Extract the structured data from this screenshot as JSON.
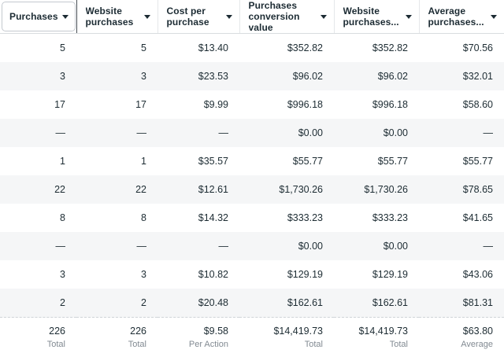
{
  "table": {
    "columns": [
      {
        "label": "Purchases",
        "state": "selected"
      },
      {
        "label": "Website purchases",
        "state": "default"
      },
      {
        "label": "Cost per purchase",
        "state": "default"
      },
      {
        "label": "Purchases conversion value",
        "state": "default"
      },
      {
        "label": "Website purchases...",
        "state": "default"
      },
      {
        "label": "Average purchases...",
        "state": "default"
      }
    ],
    "rows": [
      [
        "5",
        "5",
        "$13.40",
        "$352.82",
        "$352.82",
        "$70.56"
      ],
      [
        "3",
        "3",
        "$23.53",
        "$96.02",
        "$96.02",
        "$32.01"
      ],
      [
        "17",
        "17",
        "$9.99",
        "$996.18",
        "$996.18",
        "$58.60"
      ],
      [
        "—",
        "—",
        "—",
        "$0.00",
        "$0.00",
        "—"
      ],
      [
        "1",
        "1",
        "$35.57",
        "$55.77",
        "$55.77",
        "$55.77"
      ],
      [
        "22",
        "22",
        "$12.61",
        "$1,730.26",
        "$1,730.26",
        "$78.65"
      ],
      [
        "8",
        "8",
        "$14.32",
        "$333.23",
        "$333.23",
        "$41.65"
      ],
      [
        "—",
        "—",
        "—",
        "$0.00",
        "$0.00",
        "—"
      ],
      [
        "3",
        "3",
        "$10.82",
        "$129.19",
        "$129.19",
        "$43.06"
      ],
      [
        "2",
        "2",
        "$20.48",
        "$162.61",
        "$162.61",
        "$81.31"
      ]
    ],
    "footer": [
      {
        "value": "226",
        "label": "Total"
      },
      {
        "value": "226",
        "label": "Total"
      },
      {
        "value": "$9.58",
        "label": "Per Action"
      },
      {
        "value": "$14,419.73",
        "label": "Total"
      },
      {
        "value": "$14,419.73",
        "label": "Total"
      },
      {
        "value": "$63.80",
        "label": "Average"
      }
    ]
  },
  "colors": {
    "header_text": "#1c2b33",
    "body_text": "#1d2c33",
    "stripe_row": "#f5f6f7",
    "header_separator": "#e5e7ea",
    "header_bottom_border": "#d9dcdf",
    "selected_header_outline": "#c4c9cf",
    "selected_header_divider": "#474e54",
    "footer_label": "#828a92",
    "footer_dashed_border": "#cfd3d7"
  }
}
